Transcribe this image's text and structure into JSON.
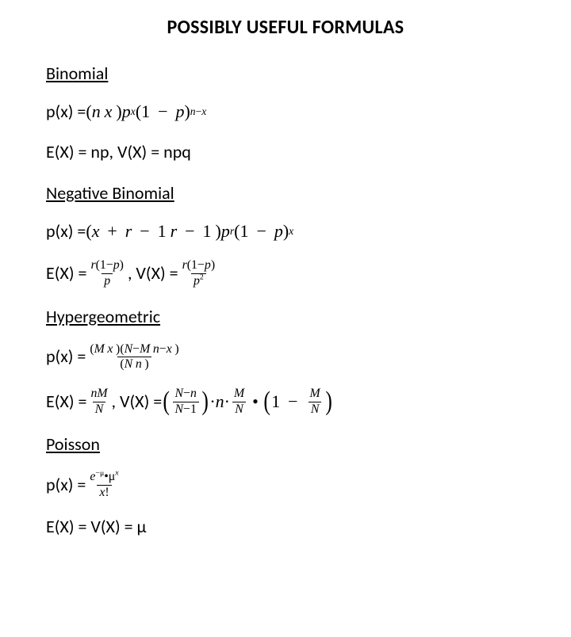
{
  "page": {
    "title": "POSSIBLY USEFUL FORMULAS",
    "background_color": "#ffffff",
    "text_color": "#000000",
    "title_fontsize": 24,
    "body_fontsize": 22
  },
  "sections": {
    "binomial": {
      "heading": "Binomial",
      "pmf": {
        "label": "p(x) = ",
        "bin_n": "n",
        "bin_x": "x",
        "p": "p",
        "exp1": "x",
        "one": "1",
        "minus": "−",
        "exp2_n": "n",
        "exp2_x": "x"
      },
      "ev": {
        "text": "E(X) = np, V(X) = npq"
      }
    },
    "negbin": {
      "heading": "Negative Binomial",
      "pmf": {
        "label": "p(x) = ",
        "bin_top_x": "x",
        "bin_top_r": "r",
        "one1": "1",
        "bin_bot_r": "r",
        "one2": "1",
        "p": "p",
        "exp_r": "r",
        "exp_x": "x",
        "minus": "−"
      },
      "ev": {
        "E_lbl": "E(X) = ",
        "V_lbl": ", V(X) = ",
        "r": "r",
        "one": "1",
        "p": "p",
        "minus": "−",
        "sq": "2"
      }
    },
    "hyper": {
      "heading": "Hypergeometric",
      "pmf": {
        "label": "p(x) = ",
        "M": "M",
        "x": "x",
        "N": "N",
        "n": "n",
        "minus": "−"
      },
      "ev": {
        "E_lbl": "E(X) = ",
        "V_lbl": ", V(X) = ",
        "n": "n",
        "N": "N",
        "M": "M",
        "one": "1",
        "minus": "−",
        "dot": "·",
        "bullet": "•"
      }
    },
    "poisson": {
      "heading": "Poisson",
      "pmf": {
        "label": "p(x) = ",
        "e": "e",
        "mu": "μ",
        "x": "x",
        "bang": "!",
        "minus": "−",
        "bullet": "•"
      },
      "ev": {
        "text": "E(X) = V(X) = μ"
      }
    }
  }
}
